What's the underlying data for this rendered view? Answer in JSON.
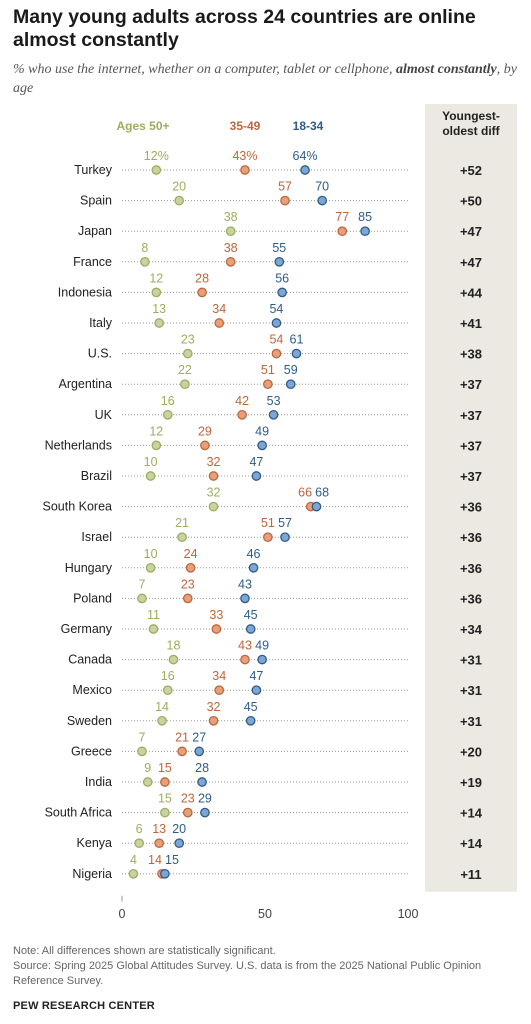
{
  "title": "Many young adults across 24 countries are online almost constantly",
  "subtitle_prefix": "% who use the internet, whether on a computer, tablet or cellphone,",
  "subtitle_emph": "almost constantly",
  "subtitle_suffix": ", by age",
  "diff_header": "Youngest-oldest diff",
  "note": "Note: All differences shown are statistically significant.",
  "source": "Source: Spring 2025 Global Attitudes Survey. U.S. data is from the 2025 National Public Opinion Reference Survey.",
  "brand": "PEW RESEARCH CENTER",
  "chart_data": {
    "type": "scatter",
    "subtype": "dot-plot",
    "title": "Many young adults across 24 countries are online almost constantly",
    "xlim": [
      0,
      100
    ],
    "x_ticks": [
      0,
      50,
      100
    ],
    "grid": "dotted row lines",
    "legend_position": "top",
    "series": [
      {
        "name": "Ages 50+",
        "color": "#9aae5e",
        "fill": "#c7d3a0"
      },
      {
        "name": "35-49",
        "color": "#c0653a",
        "fill": "#e6a07c"
      },
      {
        "name": "18-34",
        "color": "#2e5c8a",
        "fill": "#7ea6d2"
      }
    ],
    "categories": [
      "Turkey",
      "Spain",
      "Japan",
      "France",
      "Indonesia",
      "Italy",
      "U.S.",
      "Argentina",
      "UK",
      "Netherlands",
      "Brazil",
      "South Korea",
      "Israel",
      "Hungary",
      "Poland",
      "Germany",
      "Canada",
      "Mexico",
      "Sweden",
      "Greece",
      "India",
      "South Africa",
      "Kenya",
      "Nigeria"
    ],
    "values": {
      "Ages 50+": [
        12,
        20,
        38,
        8,
        12,
        13,
        23,
        22,
        16,
        12,
        10,
        32,
        21,
        10,
        7,
        11,
        18,
        16,
        14,
        7,
        9,
        15,
        6,
        4
      ],
      "35-49": [
        43,
        57,
        77,
        38,
        28,
        34,
        54,
        51,
        42,
        29,
        32,
        66,
        51,
        24,
        23,
        33,
        43,
        34,
        32,
        21,
        15,
        23,
        13,
        14
      ],
      "18-34": [
        64,
        70,
        85,
        55,
        56,
        54,
        61,
        59,
        53,
        49,
        47,
        68,
        57,
        46,
        43,
        45,
        49,
        47,
        45,
        27,
        28,
        29,
        20,
        15
      ]
    },
    "label_suffix_first_row": "%",
    "diff_labels": [
      "+52",
      "+50",
      "+47",
      "+47",
      "+44",
      "+41",
      "+38",
      "+37",
      "+37",
      "+37",
      "+37",
      "+36",
      "+36",
      "+36",
      "+36",
      "+34",
      "+31",
      "+31",
      "+31",
      "+20",
      "+19",
      "+14",
      "+14",
      "+11"
    ]
  }
}
